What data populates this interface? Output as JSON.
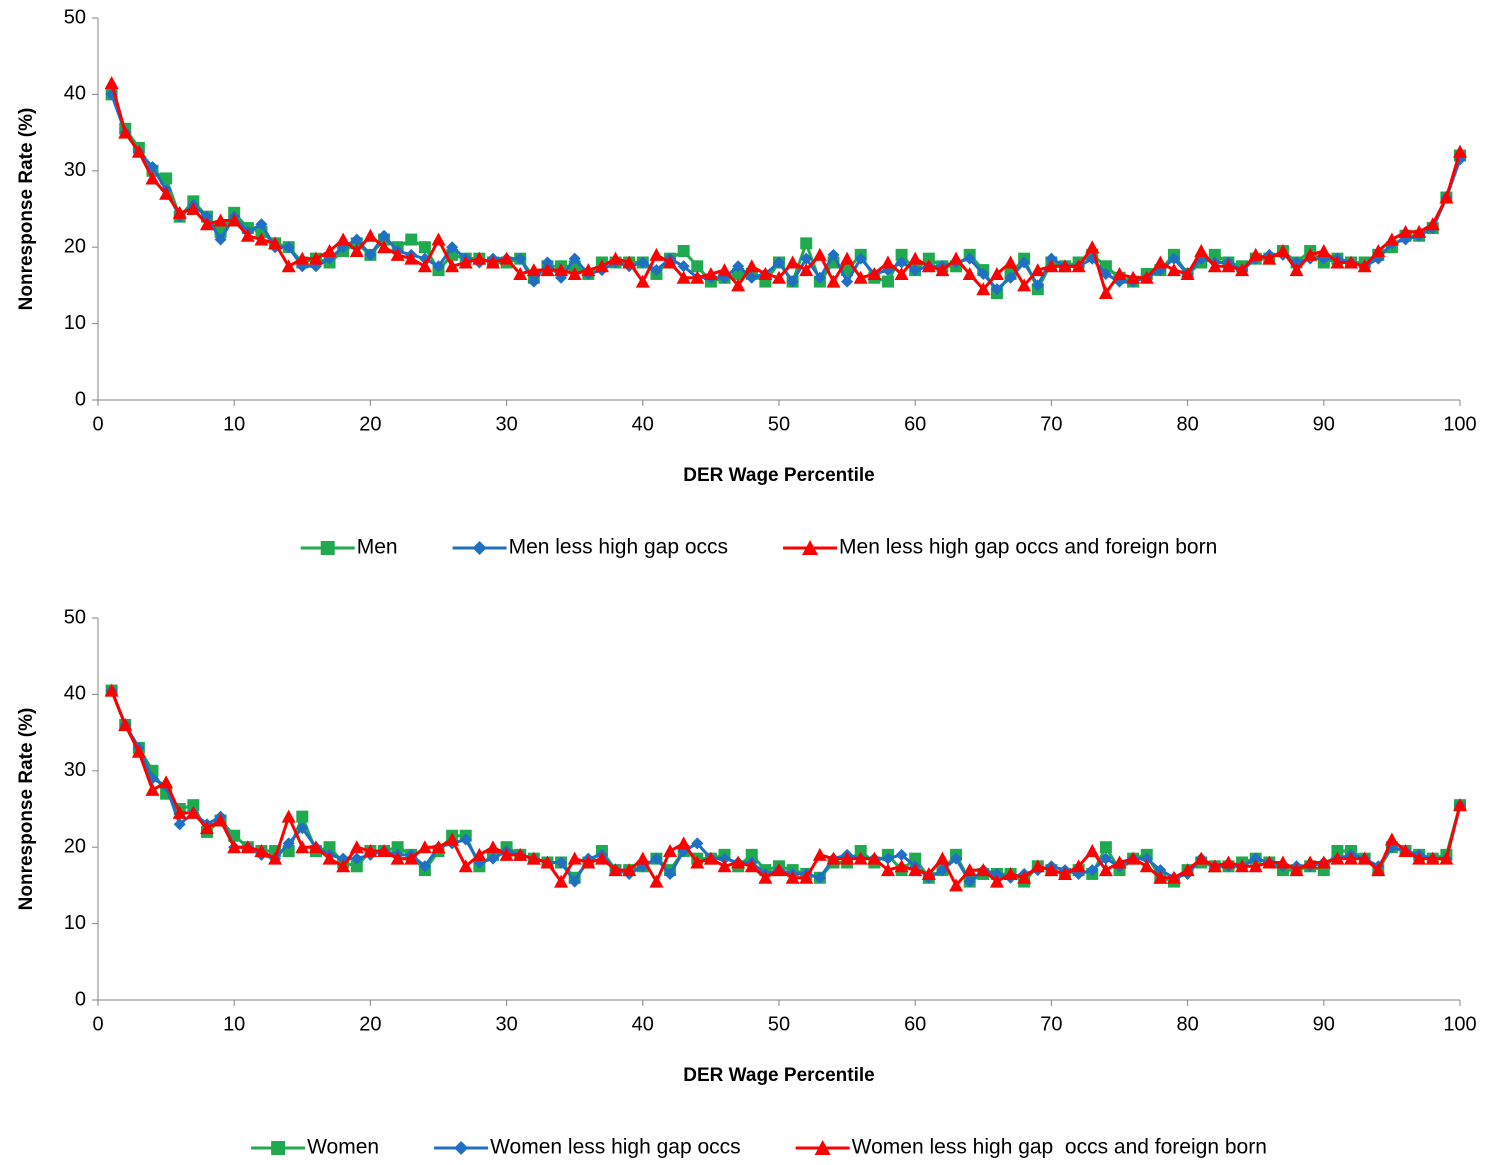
{
  "chart_data": [
    {
      "type": "line",
      "xlabel": "DER Wage Percentile",
      "ylabel": "Nonresponse Rate (%)",
      "xlim": [
        0,
        100
      ],
      "xticks": [
        0,
        10,
        20,
        30,
        40,
        50,
        60,
        70,
        80,
        90,
        100
      ],
      "ylim": [
        0,
        50
      ],
      "yticks": [
        0,
        10,
        20,
        30,
        40,
        50
      ],
      "grid": false,
      "legend": "bottom",
      "x": [
        1,
        2,
        3,
        4,
        5,
        6,
        7,
        8,
        9,
        10,
        11,
        12,
        13,
        14,
        15,
        16,
        17,
        18,
        19,
        20,
        21,
        22,
        23,
        24,
        25,
        26,
        27,
        28,
        29,
        30,
        31,
        32,
        33,
        34,
        35,
        36,
        37,
        38,
        39,
        40,
        41,
        42,
        43,
        44,
        45,
        46,
        47,
        48,
        49,
        50,
        51,
        52,
        53,
        54,
        55,
        56,
        57,
        58,
        59,
        60,
        61,
        62,
        63,
        64,
        65,
        66,
        67,
        68,
        69,
        70,
        71,
        72,
        73,
        74,
        75,
        76,
        77,
        78,
        79,
        80,
        81,
        82,
        83,
        84,
        85,
        86,
        87,
        88,
        89,
        90,
        91,
        92,
        93,
        94,
        95,
        96,
        97,
        98,
        99,
        100
      ],
      "series": [
        {
          "name": "Men",
          "color": "#1faa4f",
          "marker": "square",
          "values": [
            40,
            35.5,
            33,
            30,
            29,
            24,
            26,
            24,
            22,
            24.5,
            22.5,
            22,
            20.5,
            20,
            18,
            18.5,
            18,
            19.5,
            20.5,
            19,
            21,
            20,
            21,
            20,
            17,
            19,
            18.5,
            18.5,
            18,
            18,
            18.5,
            16,
            17.5,
            17.5,
            17.5,
            16.5,
            18,
            18,
            18,
            18,
            16.5,
            18.5,
            19.5,
            17.5,
            15.5,
            16,
            16.5,
            16.5,
            15.5,
            18,
            15.5,
            20.5,
            15.5,
            18,
            17,
            19,
            16,
            15.5,
            19,
            17,
            18.5,
            17.5,
            17.5,
            19,
            17,
            14,
            16.5,
            18.5,
            14.5,
            18,
            17.5,
            18,
            19,
            17.5,
            16,
            15.5,
            16.5,
            17,
            19,
            16.5,
            18,
            19,
            18,
            17.5,
            18.5,
            18.5,
            19.5,
            18,
            19.5,
            18,
            18.5,
            18,
            18,
            19,
            20,
            21.5,
            21.5,
            22.5,
            26.5,
            32
          ]
        },
        {
          "name": "Men less high gap occs",
          "color": "#1f6fc5",
          "marker": "diamond",
          "values": [
            40,
            35,
            32.5,
            30.5,
            27.5,
            24,
            25.5,
            24,
            21,
            24,
            22,
            23,
            20,
            20,
            17.5,
            17.5,
            18.5,
            20,
            21,
            19,
            21.5,
            19.5,
            19,
            18.5,
            17.5,
            20,
            18.5,
            18,
            18.5,
            18.5,
            18.5,
            15.5,
            18,
            16,
            18.5,
            16.5,
            17,
            18,
            17.5,
            18,
            17,
            18.5,
            17.5,
            16,
            16,
            16,
            17.5,
            16,
            16.5,
            18,
            15.5,
            18.5,
            16,
            19,
            15.5,
            18.5,
            16.5,
            17,
            18,
            17,
            17.5,
            17.5,
            18,
            18.5,
            16.5,
            14.5,
            16,
            18,
            15,
            18.5,
            17.5,
            17.5,
            18.5,
            16.5,
            15.5,
            15.5,
            16,
            17,
            18.5,
            16.5,
            18.5,
            18,
            18,
            17,
            18.5,
            19,
            19,
            18,
            18.5,
            18.5,
            18.5,
            18,
            17.5,
            18.5,
            20.5,
            21,
            21.5,
            22.5,
            26.5,
            31.5
          ]
        },
        {
          "name": "Men less high gap occs and foreign born",
          "color": "#ff0000",
          "marker": "triangle",
          "values": [
            41.5,
            35,
            32.5,
            29,
            27,
            24.5,
            25,
            23,
            23.5,
            23.5,
            21.5,
            21,
            20.5,
            17.5,
            18.5,
            18.5,
            19.5,
            21,
            19.5,
            21.5,
            20,
            19,
            18.5,
            17.5,
            21,
            17.5,
            18,
            18.5,
            18,
            18.5,
            16.5,
            17,
            17,
            17,
            16.5,
            17,
            17.5,
            18.5,
            18,
            15.5,
            19,
            18,
            16,
            16,
            16.5,
            17,
            15,
            17.5,
            16.5,
            16,
            18,
            17,
            19,
            15.5,
            18.5,
            16,
            16.5,
            18,
            16.5,
            18.5,
            17.5,
            17,
            18.5,
            16.5,
            14.5,
            16.5,
            18,
            15,
            17,
            17.5,
            17.5,
            17.5,
            20,
            14,
            16.5,
            16,
            16,
            18,
            17,
            16.5,
            19.5,
            17.5,
            17.5,
            17,
            19,
            18.5,
            19.5,
            17,
            19,
            19.5,
            18,
            18,
            17.5,
            19.5,
            21,
            22,
            22,
            23,
            26.5,
            32.5
          ]
        }
      ]
    },
    {
      "type": "line",
      "xlabel": "DER Wage Percentile",
      "ylabel": "Nonresponse Rate (%)",
      "xlim": [
        0,
        100
      ],
      "xticks": [
        0,
        10,
        20,
        30,
        40,
        50,
        60,
        70,
        80,
        90,
        100
      ],
      "ylim": [
        0,
        50
      ],
      "yticks": [
        0,
        10,
        20,
        30,
        40,
        50
      ],
      "grid": false,
      "legend": "bottom",
      "x": [
        1,
        2,
        3,
        4,
        5,
        6,
        7,
        8,
        9,
        10,
        11,
        12,
        13,
        14,
        15,
        16,
        17,
        18,
        19,
        20,
        21,
        22,
        23,
        24,
        25,
        26,
        27,
        28,
        29,
        30,
        31,
        32,
        33,
        34,
        35,
        36,
        37,
        38,
        39,
        40,
        41,
        42,
        43,
        44,
        45,
        46,
        47,
        48,
        49,
        50,
        51,
        52,
        53,
        54,
        55,
        56,
        57,
        58,
        59,
        60,
        61,
        62,
        63,
        64,
        65,
        66,
        67,
        68,
        69,
        70,
        71,
        72,
        73,
        74,
        75,
        76,
        77,
        78,
        79,
        80,
        81,
        82,
        83,
        84,
        85,
        86,
        87,
        88,
        89,
        90,
        91,
        92,
        93,
        94,
        95,
        96,
        97,
        98,
        99,
        100
      ],
      "series": [
        {
          "name": "Women",
          "color": "#1faa4f",
          "marker": "square",
          "values": [
            40.5,
            36,
            33,
            30,
            27,
            25,
            25.5,
            22,
            23.5,
            21.5,
            20,
            19.5,
            19.5,
            19.5,
            24,
            19.5,
            20,
            18,
            17.5,
            19.5,
            19.5,
            20,
            19,
            17,
            19.5,
            21.5,
            21.5,
            17.5,
            19,
            20,
            19,
            18.5,
            18,
            18,
            16,
            18,
            19.5,
            17,
            17,
            17.5,
            18.5,
            17,
            19.5,
            18.5,
            18.5,
            19,
            17.5,
            19,
            17,
            17.5,
            17,
            16.5,
            16,
            18,
            18,
            19.5,
            18,
            19,
            17,
            18.5,
            16,
            17,
            19,
            15.5,
            16.5,
            16.5,
            16.5,
            15.5,
            17.5,
            17,
            16.5,
            17,
            16.5,
            20,
            17,
            18.5,
            19,
            16,
            15.5,
            17,
            18,
            17.5,
            17.5,
            18,
            18.5,
            18,
            17,
            17,
            17.5,
            17,
            19.5,
            19.5,
            18.5,
            17,
            20,
            19.5,
            19,
            18.5,
            19,
            25.5
          ]
        },
        {
          "name": "Women less high gap occs",
          "color": "#1f6fc5",
          "marker": "diamond",
          "values": [
            40.5,
            36,
            33,
            29,
            28,
            23,
            24.5,
            23,
            24,
            20,
            20,
            19,
            18.5,
            20.5,
            22.5,
            20,
            19,
            18.5,
            18.5,
            19,
            19.5,
            19,
            19,
            17.5,
            20,
            20.5,
            21,
            18,
            18.5,
            19.5,
            19,
            18.5,
            18,
            18,
            15.5,
            18.5,
            19,
            17,
            16.5,
            17.5,
            18.5,
            16.5,
            19.5,
            20.5,
            18.5,
            18.5,
            18,
            18,
            16.5,
            17,
            16.5,
            16.5,
            16,
            18.5,
            19,
            18.5,
            18.5,
            18.5,
            19,
            17.5,
            16,
            17,
            18.5,
            15.5,
            17,
            16.5,
            16,
            16.5,
            17,
            17.5,
            17,
            16.5,
            17,
            18.5,
            17.5,
            18.5,
            18.5,
            17,
            16,
            16.5,
            18.5,
            17.5,
            17.5,
            17.5,
            18.5,
            18,
            17.5,
            17.5,
            17.5,
            18,
            18.5,
            19,
            18.5,
            17.5,
            20,
            19.5,
            19,
            18.5,
            18.5,
            25.5
          ]
        },
        {
          "name": "Women less high gap  occs and foreign born",
          "color": "#ff0000",
          "marker": "triangle",
          "values": [
            40.5,
            36,
            32.5,
            27.5,
            28.5,
            24.5,
            24.5,
            22.5,
            23.5,
            20,
            20,
            19.5,
            18.5,
            24,
            20,
            20,
            18.5,
            17.5,
            20,
            19.5,
            19.5,
            18.5,
            18.5,
            20,
            20,
            21,
            17.5,
            19,
            20,
            19,
            19,
            18.5,
            18,
            15.5,
            18.5,
            18,
            18.5,
            17,
            17,
            18.5,
            15.5,
            19.5,
            20.5,
            18,
            18.5,
            17.5,
            18,
            17.5,
            16,
            17,
            16,
            16,
            19,
            18.5,
            18.5,
            18.5,
            18.5,
            17,
            17.5,
            17,
            16.5,
            18.5,
            15,
            17,
            17,
            15.5,
            16.5,
            16,
            17.5,
            17,
            16.5,
            17.5,
            19.5,
            17,
            18,
            18.5,
            17.5,
            16,
            16,
            17,
            18.5,
            17.5,
            18,
            17.5,
            17.5,
            18,
            18,
            17,
            18,
            18,
            18.5,
            18.5,
            18.5,
            17,
            21,
            19.5,
            18.5,
            18.5,
            18.5,
            25.5
          ]
        }
      ]
    }
  ]
}
